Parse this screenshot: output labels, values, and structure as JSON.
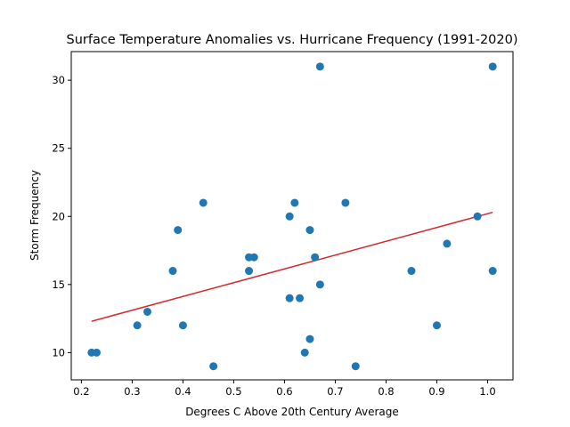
{
  "chart_data": {
    "type": "scatter",
    "title": "Surface Temperature Anomalies vs. Hurricane Frequency (1991-2020)",
    "xlabel": "Degrees C Above 20th Century Average",
    "ylabel": "Storm Frequency",
    "xlim": [
      0.18,
      1.05
    ],
    "ylim": [
      8.0,
      32.1
    ],
    "xticks": [
      "0.2",
      "0.3",
      "0.4",
      "0.5",
      "0.6",
      "0.7",
      "0.8",
      "0.9",
      "1.0"
    ],
    "xtick_values": [
      0.2,
      0.3,
      0.4,
      0.5,
      0.6,
      0.7,
      0.8,
      0.9,
      1.0
    ],
    "yticks": [
      "10",
      "15",
      "20",
      "25",
      "30"
    ],
    "ytick_values": [
      10,
      15,
      20,
      25,
      30
    ],
    "grid": false,
    "point_color": "#1f77b4",
    "trend_color": "#d62728",
    "points": [
      {
        "x": 0.22,
        "y": 10
      },
      {
        "x": 0.23,
        "y": 10
      },
      {
        "x": 0.31,
        "y": 12
      },
      {
        "x": 0.33,
        "y": 13
      },
      {
        "x": 0.38,
        "y": 16
      },
      {
        "x": 0.39,
        "y": 19
      },
      {
        "x": 0.4,
        "y": 12
      },
      {
        "x": 0.44,
        "y": 21
      },
      {
        "x": 0.46,
        "y": 9
      },
      {
        "x": 0.53,
        "y": 16
      },
      {
        "x": 0.53,
        "y": 17
      },
      {
        "x": 0.54,
        "y": 17
      },
      {
        "x": 0.61,
        "y": 14
      },
      {
        "x": 0.61,
        "y": 20
      },
      {
        "x": 0.62,
        "y": 21
      },
      {
        "x": 0.63,
        "y": 14
      },
      {
        "x": 0.64,
        "y": 10
      },
      {
        "x": 0.65,
        "y": 19
      },
      {
        "x": 0.65,
        "y": 11
      },
      {
        "x": 0.66,
        "y": 17
      },
      {
        "x": 0.67,
        "y": 15
      },
      {
        "x": 0.67,
        "y": 31
      },
      {
        "x": 0.72,
        "y": 21
      },
      {
        "x": 0.74,
        "y": 9
      },
      {
        "x": 0.85,
        "y": 16
      },
      {
        "x": 0.9,
        "y": 12
      },
      {
        "x": 0.92,
        "y": 18
      },
      {
        "x": 0.98,
        "y": 20
      },
      {
        "x": 1.01,
        "y": 16
      },
      {
        "x": 1.01,
        "y": 31
      }
    ],
    "trendline": {
      "x": [
        0.22,
        1.01
      ],
      "y": [
        12.3,
        20.3
      ]
    }
  }
}
